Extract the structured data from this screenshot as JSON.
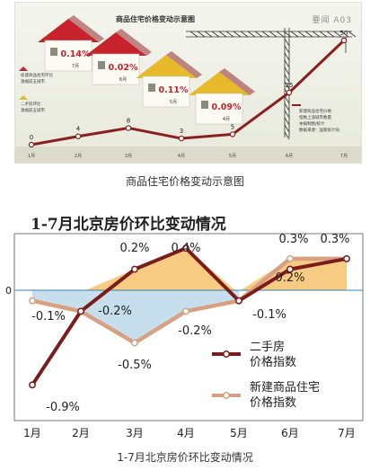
{
  "top_figure": {
    "title": "商品住宅价格变动示意图",
    "tag": "要闻 A03",
    "caption": "商品住宅价格变动示意图",
    "house_labels": [
      {
        "pct": "0.14%",
        "month": "7月"
      },
      {
        "pct": "0.02%",
        "month": "6月"
      },
      {
        "pct": "0.11%",
        "month": "5月"
      },
      {
        "pct": "0.09%",
        "month": "4月"
      }
    ],
    "legend_left": [
      "新建商品住宅环比",
      "涨幅前五城市",
      "二手房环比",
      "涨幅前五城市"
    ],
    "legend_right": [
      "新建商品住宅价格",
      "指数上涨城市数量",
      "本报制图/统计",
      "数据来源：国家统计局"
    ],
    "colors": {
      "house_red": "#c8232c",
      "house_yellow": "#e8b92a",
      "line": "#8b1f1f"
    },
    "chart_data": {
      "type": "line",
      "categories": [
        "1月",
        "2月",
        "3月",
        "4月",
        "5月",
        "6月",
        "7月"
      ],
      "series": [
        {
          "values": [
            0,
            4,
            8,
            3,
            5,
            25,
            50
          ]
        }
      ]
    }
  },
  "chart_title": "1-7月北京房价环比变动情况",
  "caption": "1-7月北京房价环比变动情况",
  "colors": {
    "second_hand": "#7a1c1c",
    "new_home": "#d8a081",
    "fill_positive": "#f6c774",
    "fill_negative": "#b9d6e8",
    "axis": "#444444",
    "zero_line": "#3f7fa8"
  },
  "chart_data": {
    "type": "line",
    "title": "1-7月北京房价环比变动情况",
    "categories": [
      "1月",
      "2月",
      "3月",
      "4月",
      "5月",
      "6月",
      "7月"
    ],
    "zero_label": "0",
    "series": [
      {
        "name": "二手房\n价格指数",
        "values": [
          -0.9,
          -0.2,
          0.2,
          0.4,
          -0.1,
          0.2,
          0.3
        ],
        "labels": [
          "-0.9%",
          "-0.2%",
          "0.2%",
          "0.4%",
          "-0.1%",
          "0.2%",
          "0.3%"
        ]
      },
      {
        "name": "新建商品住宅\n价格指数",
        "values": [
          -0.1,
          -0.2,
          -0.5,
          -0.2,
          -0.1,
          0.3,
          0.3
        ],
        "labels": [
          "-0.1%",
          "",
          "-0.5%",
          "-0.2%",
          "",
          "0.3%",
          "0.3%"
        ]
      }
    ],
    "legend": [
      "二手房",
      "价格指数",
      "新建商品住宅",
      "价格指数"
    ],
    "legend_position": "right-middle"
  }
}
